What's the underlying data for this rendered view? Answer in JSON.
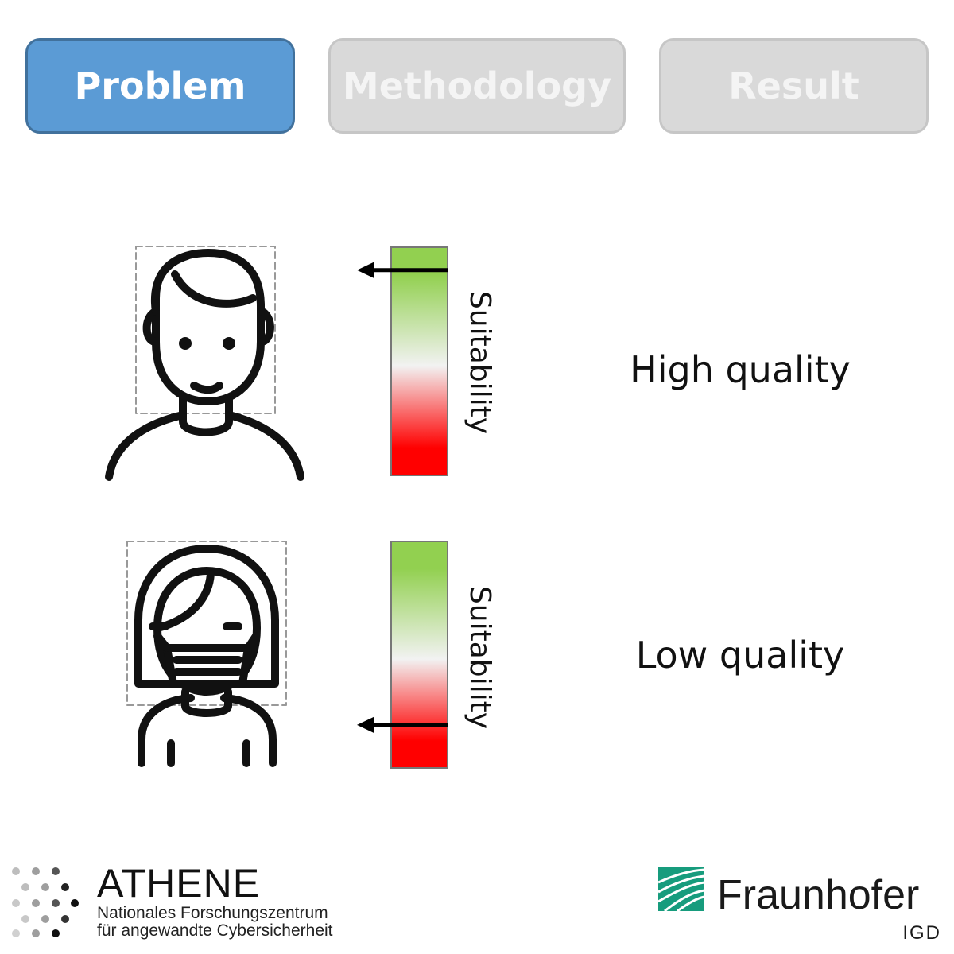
{
  "tabs": [
    {
      "label": "Problem",
      "state": "active"
    },
    {
      "label": "Methodology",
      "state": "inactive"
    },
    {
      "label": "Result",
      "state": "inactive"
    }
  ],
  "rows": [
    {
      "icon": "person-icon",
      "bar_label": "Suitability",
      "marker_level": 0.9,
      "quality_label": "High quality"
    },
    {
      "icon": "masked-person-icon",
      "bar_label": "Suitability",
      "marker_level": 0.19,
      "quality_label": "Low quality"
    }
  ],
  "bar_gradient": {
    "top": "#92d050",
    "middle": "#f2f2f2",
    "bottom": "#ff0000"
  },
  "logos": {
    "athene": {
      "title": "ATHENE",
      "line1": "Nationales Forschungszentrum",
      "line2": "für angewandte Cybersicherheit"
    },
    "fraunhofer": {
      "name": "Fraunhofer",
      "unit": "IGD",
      "color": "#179c7d"
    }
  }
}
